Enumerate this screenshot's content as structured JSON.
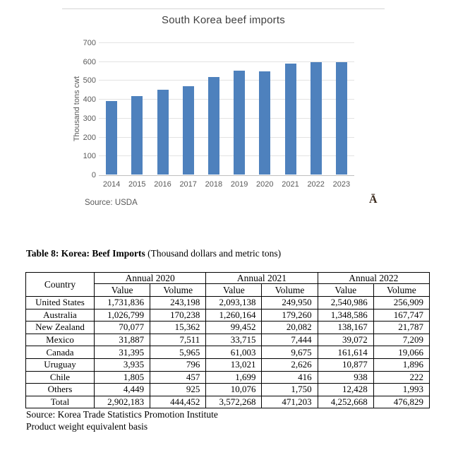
{
  "chart": {
    "title": "South Korea beef imports",
    "ylabel": "Thousand tons cwt",
    "source": "Source: USDA",
    "stray_glyph": "Ā",
    "colors": {
      "bar": "#4e81bd",
      "gridline": "#e3e3e3",
      "axis_line": "#bfbfbf",
      "tick_text": "#595959",
      "title_text": "#3f3f3f",
      "glyph_text": "#3b2a1d"
    }
  },
  "chart_data": {
    "type": "bar",
    "categories": [
      "2014",
      "2015",
      "2016",
      "2017",
      "2018",
      "2019",
      "2020",
      "2021",
      "2022",
      "2023"
    ],
    "values": [
      390,
      414,
      451,
      467,
      515,
      550,
      548,
      588,
      595,
      595
    ],
    "title": "South Korea beef imports",
    "xlabel": "",
    "ylabel": "Thousand tons cwt",
    "ylim": [
      0,
      700
    ],
    "ytick_step": 100,
    "grid": true,
    "legend": false,
    "bar_color": "#4e81bd",
    "source": "Source: USDA"
  },
  "table": {
    "caption_bold": "Table 8: Korea: Beef Imports",
    "caption_normal": " (Thousand dollars and metric tons)",
    "country_header": "Country",
    "year_groups": [
      "Annual 2020",
      "Annual 2021",
      "Annual 2022"
    ],
    "sub_headers": [
      "Value",
      "Volume"
    ],
    "rows": [
      {
        "country": "United States",
        "cells": [
          "1,731,836",
          "243,198",
          "2,093,138",
          "249,950",
          "2,540,986",
          "256,909"
        ]
      },
      {
        "country": "Australia",
        "cells": [
          "1,026,799",
          "170,238",
          "1,260,164",
          "179,260",
          "1,348,586",
          "167,747"
        ]
      },
      {
        "country": "New Zealand",
        "cells": [
          "70,077",
          "15,362",
          "99,452",
          "20,082",
          "138,167",
          "21,787"
        ]
      },
      {
        "country": "Mexico",
        "cells": [
          "31,887",
          "7,511",
          "33,715",
          "7,444",
          "39,072",
          "7,209"
        ]
      },
      {
        "country": "Canada",
        "cells": [
          "31,395",
          "5,965",
          "61,003",
          "9,675",
          "161,614",
          "19,066"
        ]
      },
      {
        "country": "Uruguay",
        "cells": [
          "3,935",
          "796",
          "13,021",
          "2,626",
          "10,877",
          "1,896"
        ]
      },
      {
        "country": "Chile",
        "cells": [
          "1,805",
          "457",
          "1,699",
          "416",
          "938",
          "222"
        ]
      },
      {
        "country": "Others",
        "cells": [
          "4,449",
          "925",
          "10,076",
          "1,750",
          "12,428",
          "1,993"
        ]
      },
      {
        "country": "Total",
        "cells": [
          "2,902,183",
          "444,452",
          "3,572,268",
          "471,203",
          "4,252,668",
          "476,829"
        ]
      }
    ],
    "source_lines": [
      "Source: Korea Trade Statistics Promotion Institute",
      "Product weight equivalent basis"
    ]
  }
}
